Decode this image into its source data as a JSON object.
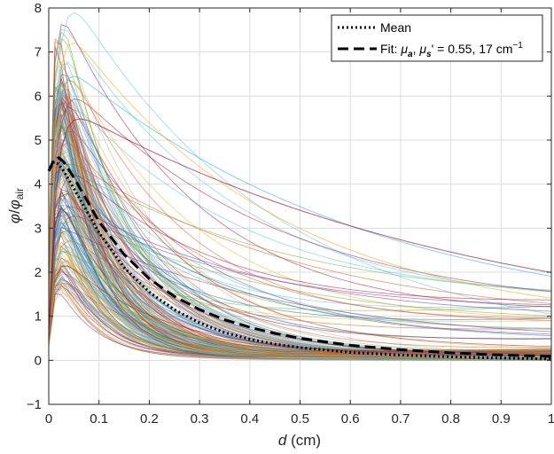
{
  "chart_data": {
    "type": "line",
    "xlabel": "d (cm)",
    "ylabel": "φ/φair",
    "xlim": [
      0,
      1
    ],
    "ylim": [
      -1,
      8
    ],
    "xticks": [
      0,
      0.1,
      0.2,
      0.3,
      0.4,
      0.5,
      0.6,
      0.7,
      0.8,
      0.9,
      1
    ],
    "xtick_labels": [
      "0",
      "0.1",
      "0.2",
      "0.3",
      "0.4",
      "0.5",
      "0.6",
      "0.7",
      "0.8",
      "0.9",
      "1"
    ],
    "yticks": [
      -1,
      0,
      1,
      2,
      3,
      4,
      5,
      6,
      7,
      8
    ],
    "ytick_labels": [
      "−1",
      "0",
      "1",
      "2",
      "3",
      "4",
      "5",
      "6",
      "7",
      "8"
    ],
    "grid": true,
    "legend_position": "top-right",
    "legend": [
      {
        "label": "Mean",
        "style": "dotted",
        "color": "#000000"
      },
      {
        "label": "Fit: μa, μs' = 0.55, 17 cm−1",
        "style": "dashed",
        "color": "#000000"
      }
    ],
    "series": [
      {
        "name": "Mean",
        "style": "dotted",
        "color": "#000000",
        "x": [
          0,
          0.01,
          0.02,
          0.03,
          0.05,
          0.08,
          0.1,
          0.15,
          0.2,
          0.25,
          0.3,
          0.35,
          0.4,
          0.45,
          0.5,
          0.6,
          0.7,
          0.8,
          0.9,
          1.0
        ],
        "y": [
          4.3,
          4.5,
          4.45,
          4.3,
          3.9,
          3.3,
          2.9,
          2.1,
          1.55,
          1.15,
          0.85,
          0.63,
          0.48,
          0.37,
          0.29,
          0.18,
          0.12,
          0.08,
          0.05,
          0.03
        ]
      },
      {
        "name": "Fit: μa, μs' = 0.55, 17 cm−1",
        "style": "dashed",
        "color": "#000000",
        "x": [
          0,
          0.01,
          0.02,
          0.03,
          0.05,
          0.08,
          0.1,
          0.15,
          0.2,
          0.25,
          0.3,
          0.35,
          0.4,
          0.45,
          0.5,
          0.6,
          0.7,
          0.8,
          0.9,
          1.0
        ],
        "y": [
          4.3,
          4.55,
          4.6,
          4.5,
          4.15,
          3.55,
          3.15,
          2.4,
          1.85,
          1.45,
          1.15,
          0.92,
          0.75,
          0.61,
          0.5,
          0.34,
          0.24,
          0.17,
          0.12,
          0.09
        ]
      }
    ],
    "individual_curves": {
      "style": "thin multicolored solid lines",
      "peak_range": [
        1.5,
        7.5
      ],
      "tail_range_at_x1": [
        0,
        1.4
      ],
      "colors": [
        "#0072BD",
        "#D95319",
        "#EDB120",
        "#7E2F8E",
        "#77AC30",
        "#4DBEEE",
        "#A2142F"
      ]
    }
  }
}
